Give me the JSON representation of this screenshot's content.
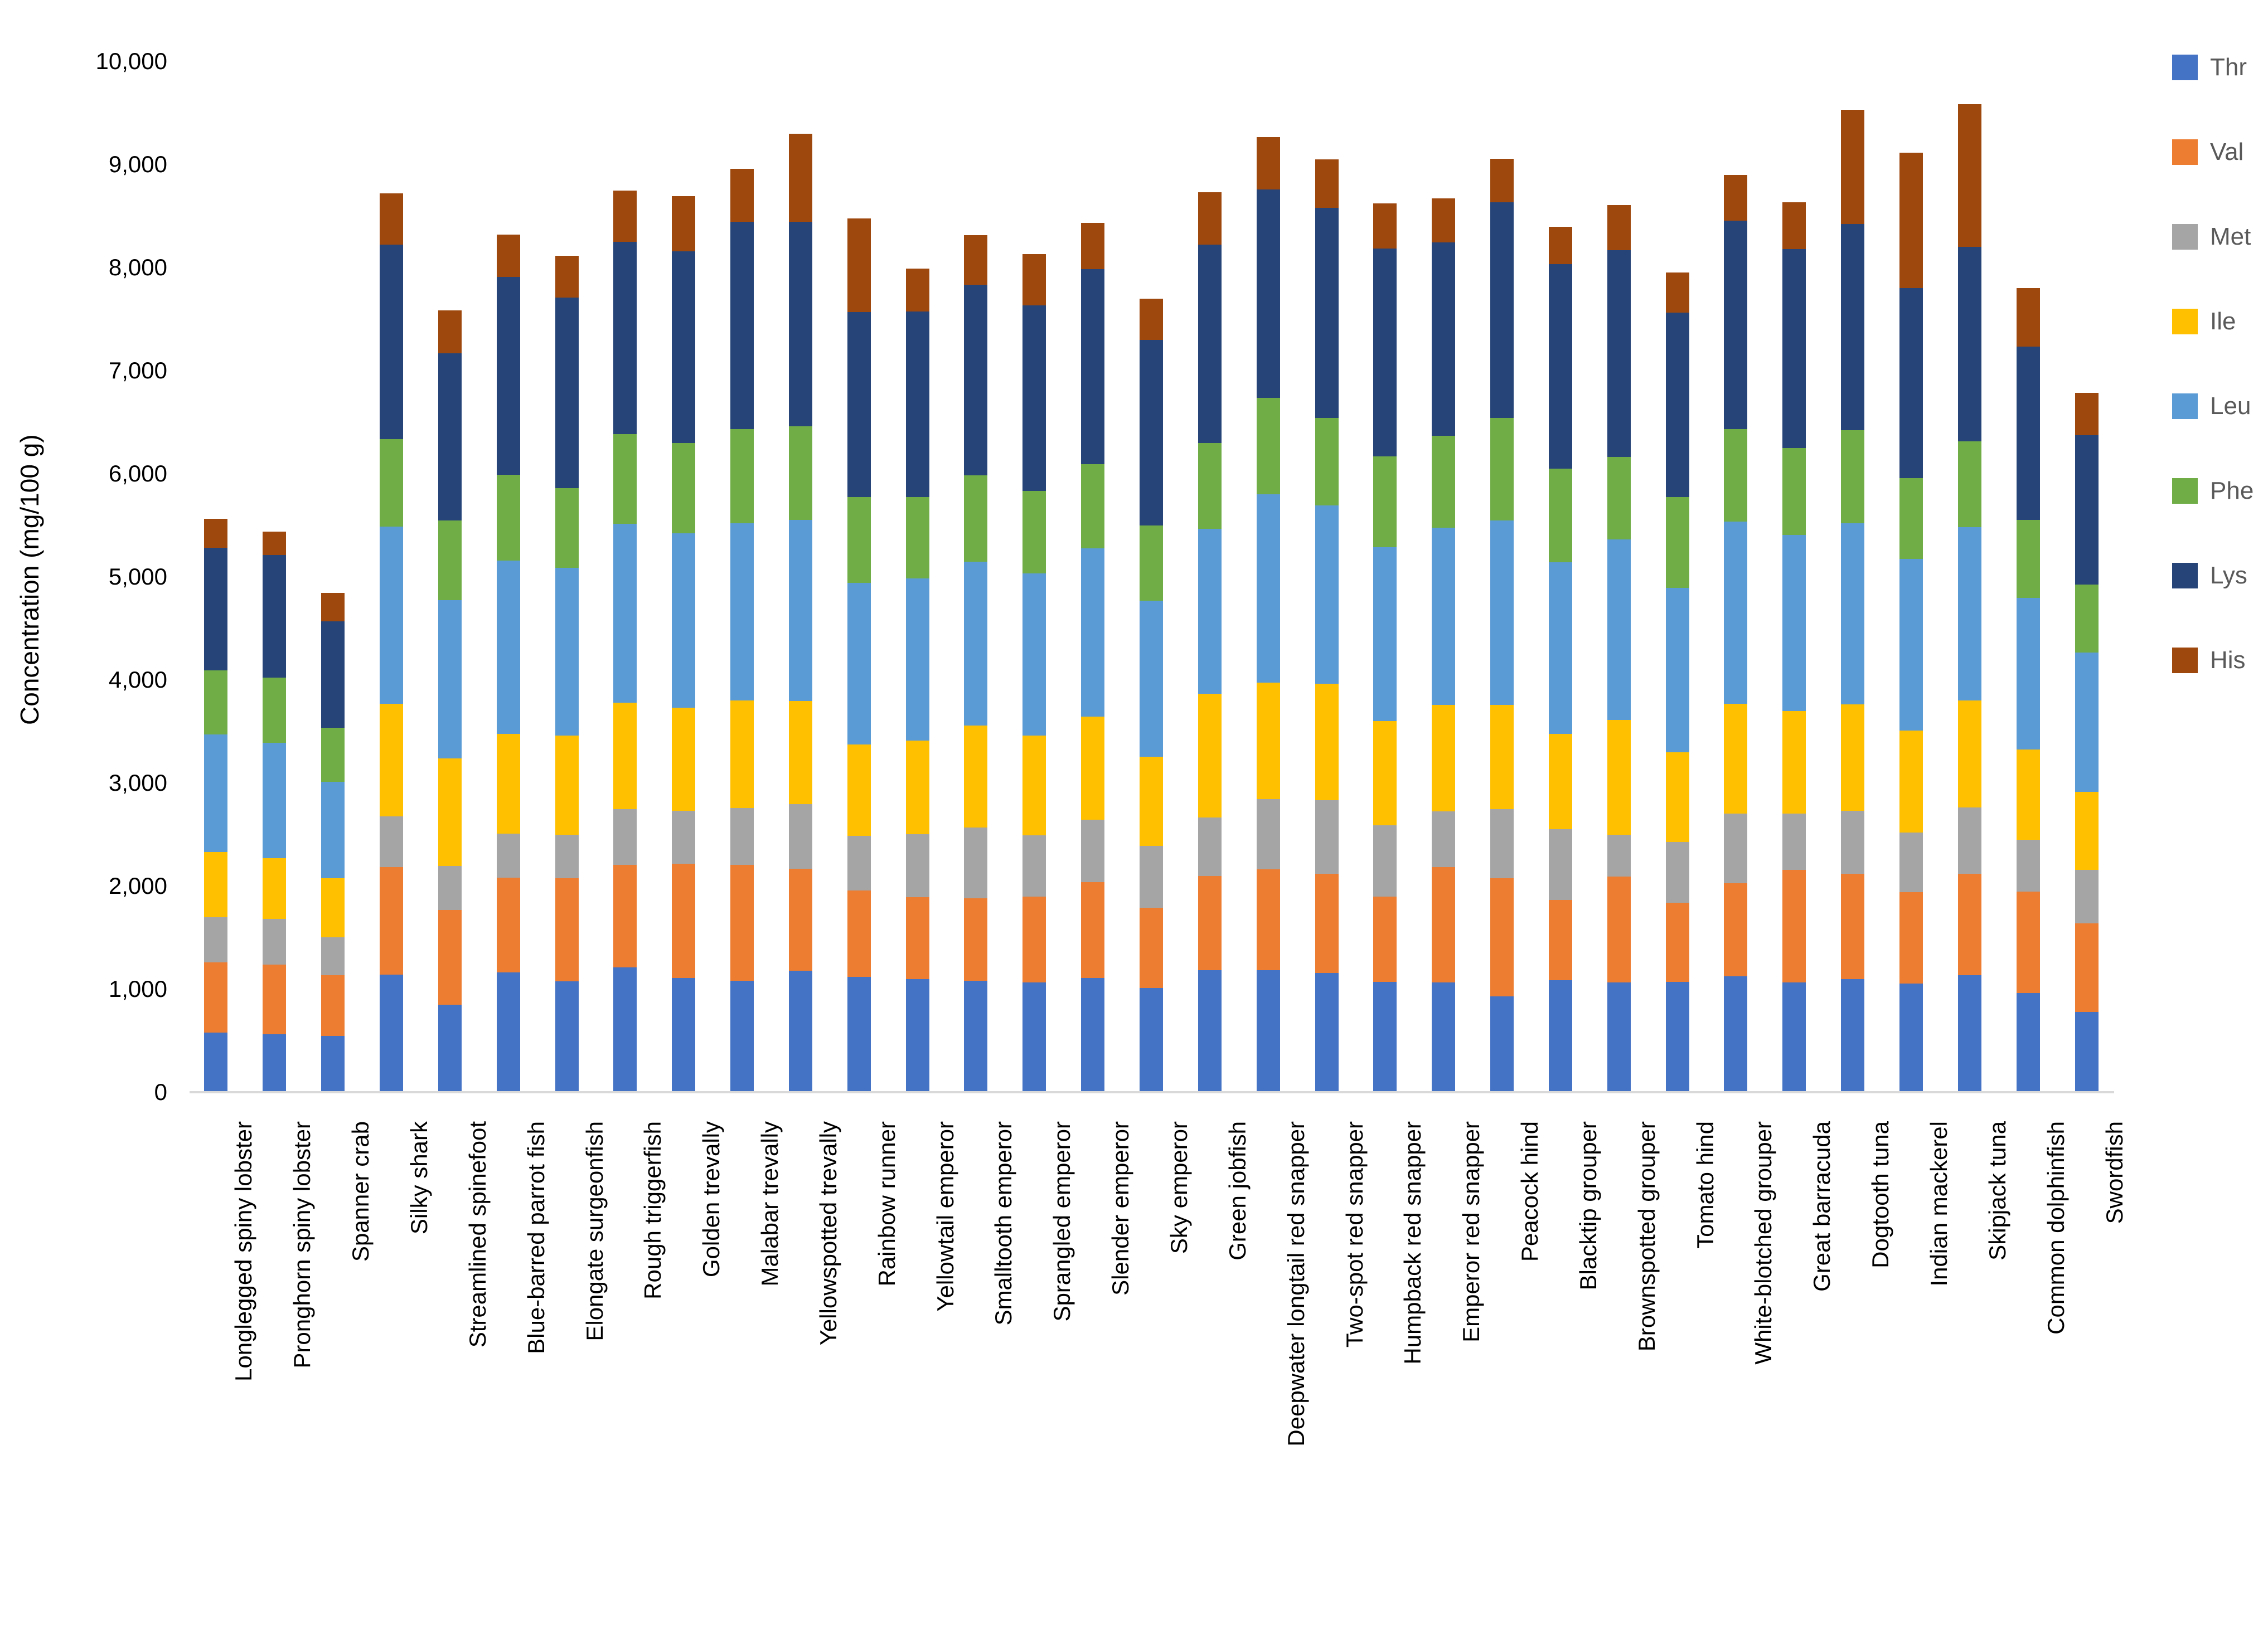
{
  "chart_data": {
    "type": "stacked-bar",
    "title": "",
    "xlabel": "",
    "ylabel": "Concentration (mg/100 g)",
    "ylim": [
      0,
      10000
    ],
    "ytick_step": 1000,
    "yticks": [
      "0",
      "1,000",
      "2,000",
      "3,000",
      "4,000",
      "5,000",
      "6,000",
      "7,000",
      "8,000",
      "9,000",
      "10,000"
    ],
    "grid": false,
    "legend_position": "right",
    "categories": [
      "Longlegged spiny lobster",
      "Pronghorn spiny lobster",
      "Spanner crab",
      "Silky shark",
      "Streamlined spinefoot",
      "Blue-barred parrot fish",
      "Elongate surgeonfish",
      "Rough triggerfish",
      "Golden trevally",
      "Malabar trevally",
      "Yellowspotted trevally",
      "Rainbow runner",
      "Yellowtail emperor",
      "Smalltooth emperor",
      "Sprangled emperor",
      "Slender emperor",
      "Sky emperor",
      "Green jobfish",
      "Deepwater longtail red snapper",
      "Two-spot red snapper",
      "Humpback red snapper",
      "Emperor red snapper",
      "Peacock hind",
      "Blacktip grouper",
      "Brownspotted grouper",
      "Tomato hind",
      "White-blotched grouper",
      "Great barracuda",
      "Dogtooth tuna",
      "Indian mackerel",
      "Skipjack tuna",
      "Common dolphinfish",
      "Swordfish"
    ],
    "series": [
      {
        "name": "Thr",
        "color": "#4472C4",
        "values": [
          580,
          560,
          545,
          1140,
          850,
          1160,
          1075,
          1210,
          1110,
          1080,
          1180,
          1120,
          1100,
          1080,
          1065,
          1110,
          1010,
          1185,
          1185,
          1155,
          1070,
          1065,
          930,
          1085,
          1065,
          1070,
          1125,
          1065,
          1100,
          1055,
          1135,
          960,
          780
        ]
      },
      {
        "name": "Val",
        "color": "#ED7D31",
        "values": [
          680,
          680,
          590,
          1045,
          915,
          920,
          1000,
          995,
          1105,
          1125,
          990,
          835,
          790,
          800,
          830,
          930,
          780,
          910,
          975,
          965,
          825,
          1120,
          1145,
          780,
          1025,
          770,
          900,
          1090,
          1020,
          885,
          985,
          985,
          860
        ]
      },
      {
        "name": "Met",
        "color": "#A5A5A5",
        "values": [
          440,
          440,
          370,
          490,
          430,
          430,
          425,
          540,
          515,
          550,
          625,
          530,
          615,
          690,
          595,
          605,
          600,
          570,
          685,
          710,
          695,
          540,
          670,
          685,
          410,
          585,
          680,
          550,
          610,
          580,
          640,
          505,
          515
        ]
      },
      {
        "name": "Ile",
        "color": "#FFC000",
        "values": [
          630,
          590,
          570,
          1095,
          1045,
          965,
          960,
          1035,
          1000,
          1045,
          1000,
          890,
          905,
          985,
          970,
          1000,
          865,
          1200,
          1130,
          1130,
          1010,
          1030,
          1010,
          925,
          1110,
          875,
          1065,
          990,
          1030,
          990,
          1040,
          875,
          760
        ]
      },
      {
        "name": "Leu",
        "color": "#5B9BD5",
        "values": [
          1140,
          1120,
          935,
          1715,
          1535,
          1680,
          1625,
          1735,
          1690,
          1720,
          1755,
          1565,
          1575,
          1590,
          1575,
          1630,
          1510,
          1600,
          1825,
          1730,
          1685,
          1720,
          1790,
          1665,
          1750,
          1590,
          1765,
          1710,
          1760,
          1665,
          1680,
          1470,
          1350
        ]
      },
      {
        "name": "Phe",
        "color": "#70AD47",
        "values": [
          620,
          630,
          525,
          850,
          770,
          835,
          775,
          870,
          875,
          910,
          910,
          835,
          790,
          840,
          800,
          815,
          730,
          835,
          935,
          850,
          885,
          890,
          995,
          910,
          800,
          885,
          895,
          845,
          900,
          780,
          835,
          755,
          660
        ]
      },
      {
        "name": "Lys",
        "color": "#264478",
        "values": [
          1190,
          1190,
          1030,
          1885,
          1625,
          1920,
          1850,
          1865,
          1860,
          2015,
          1985,
          1795,
          1800,
          1850,
          1795,
          1895,
          1800,
          1920,
          2020,
          2040,
          2015,
          1880,
          2090,
          1980,
          2005,
          1785,
          2025,
          1930,
          2000,
          1845,
          1885,
          1680,
          1450
        ]
      },
      {
        "name": "His",
        "color": "#9E480E",
        "values": [
          280,
          230,
          280,
          500,
          415,
          410,
          405,
          495,
          535,
          510,
          855,
          905,
          415,
          480,
          500,
          450,
          405,
          510,
          510,
          470,
          435,
          425,
          425,
          365,
          440,
          390,
          445,
          455,
          1110,
          1315,
          1385,
          570,
          410
        ]
      }
    ]
  }
}
